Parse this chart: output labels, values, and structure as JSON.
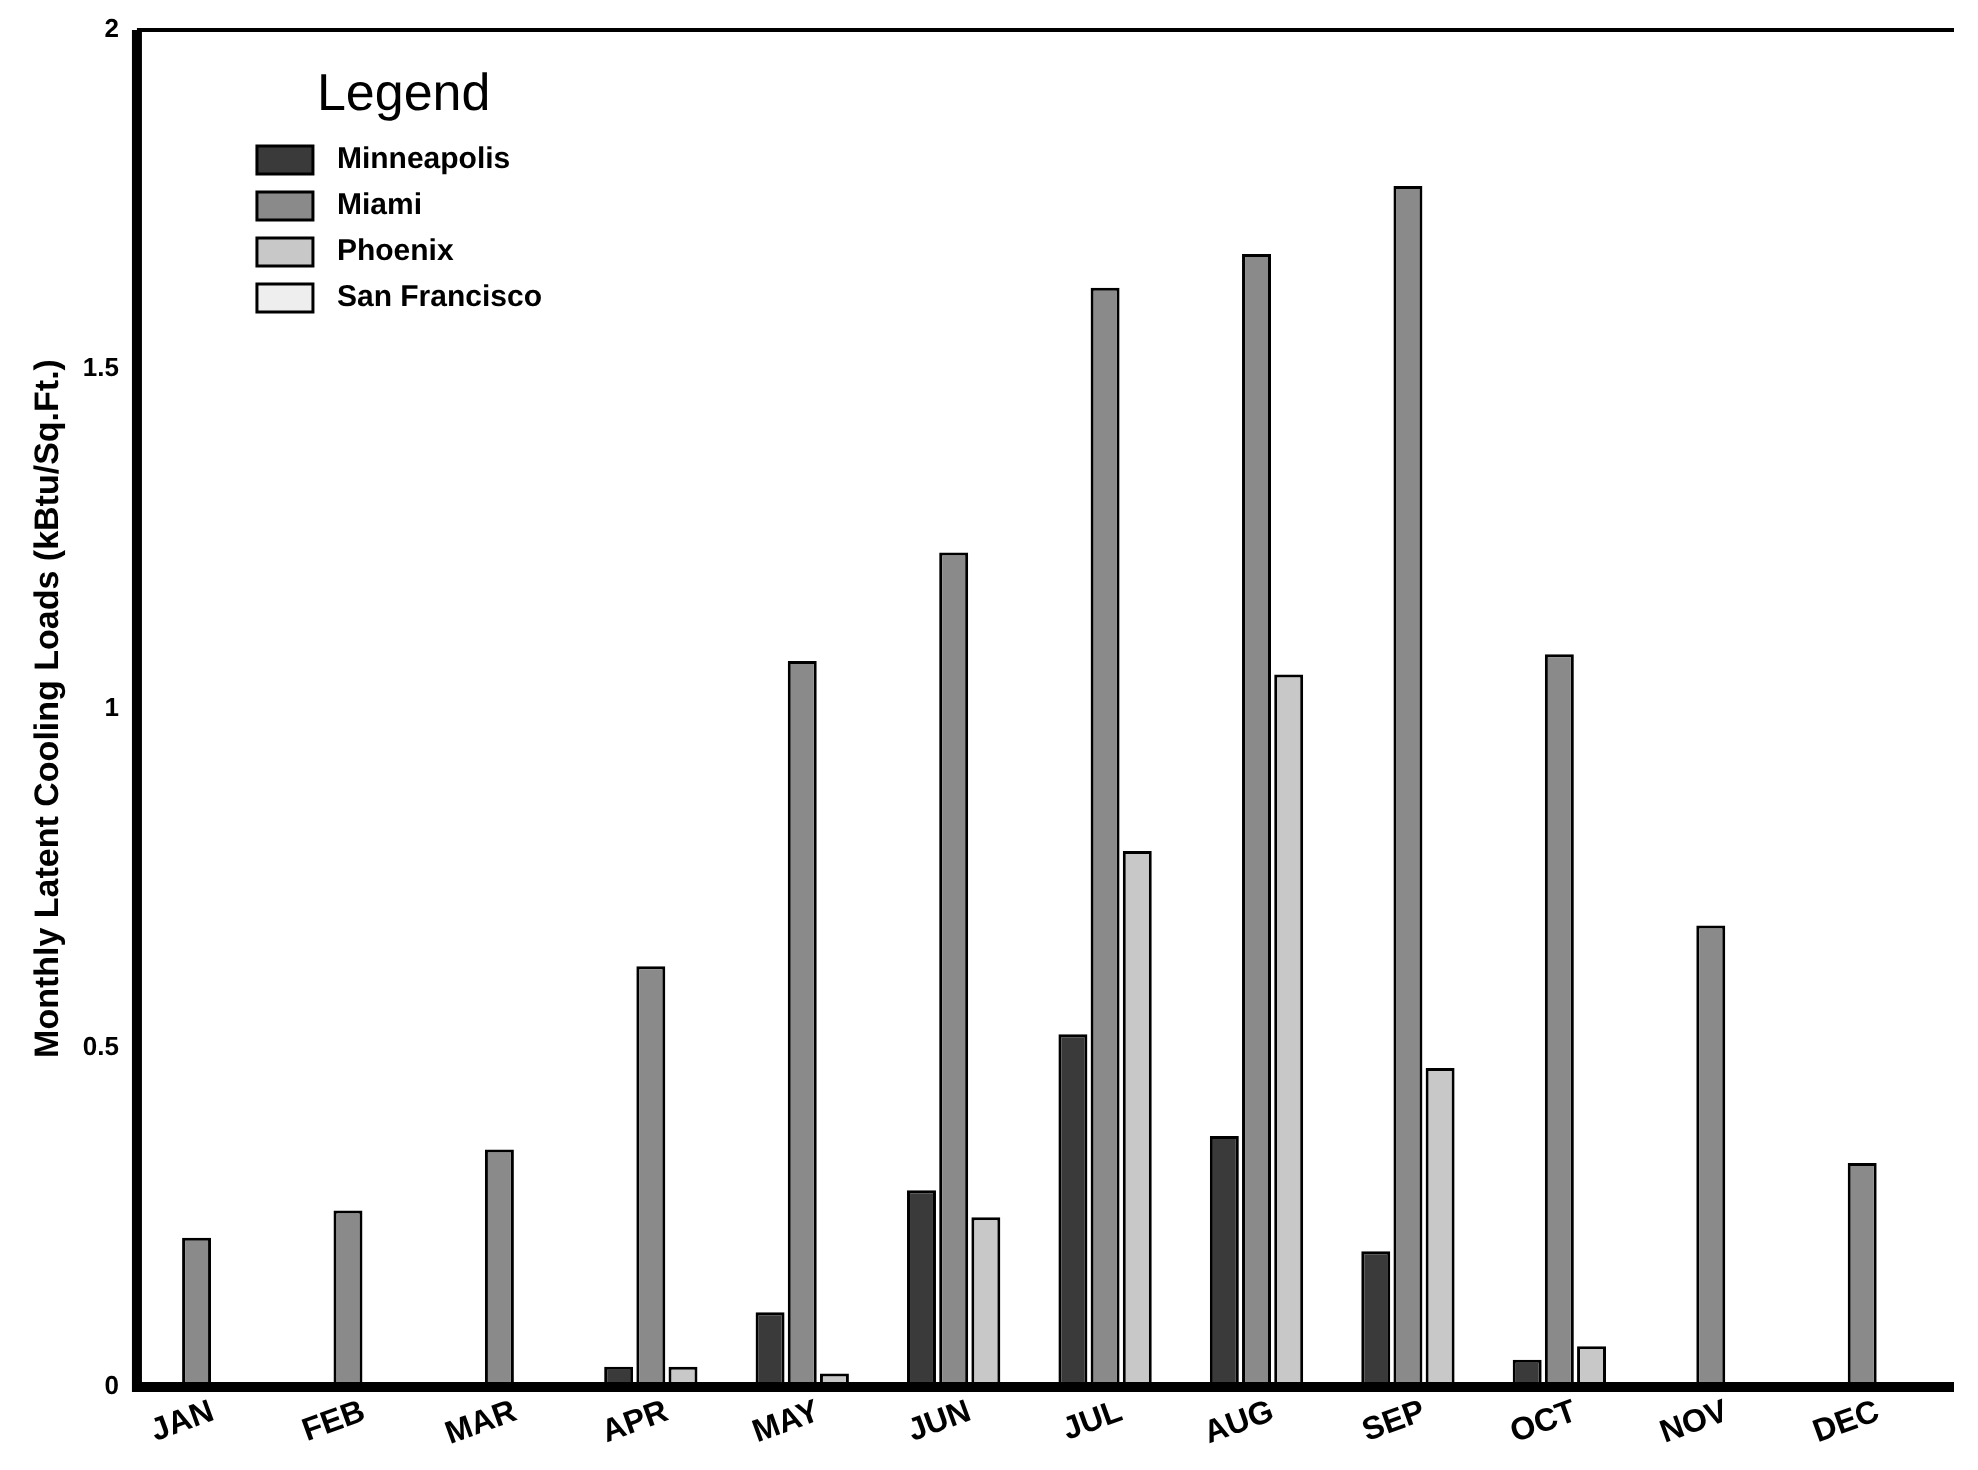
{
  "chart_data": {
    "type": "bar",
    "ylabel": "Monthly Latent Cooling Loads (kBtu/Sq.Ft.)",
    "legend_title": "Legend",
    "legend": "top left",
    "grid": false,
    "categories": [
      "JAN",
      "FEB",
      "MAR",
      "APR",
      "MAY",
      "JUN",
      "JUL",
      "AUG",
      "SEP",
      "OCT",
      "NOV",
      "DEC"
    ],
    "series": [
      {
        "name": "Minneapolis",
        "color": "#3a3a3a",
        "values": [
          0,
          0,
          0,
          0.03,
          0.11,
          0.29,
          0.52,
          0.37,
          0.2,
          0.04,
          0,
          0
        ]
      },
      {
        "name": "Miami",
        "color": "#8a8a8a",
        "values": [
          0.22,
          0.26,
          0.35,
          0.62,
          1.07,
          1.23,
          1.62,
          1.67,
          1.77,
          1.08,
          0.68,
          0.33
        ]
      },
      {
        "name": "Phoenix",
        "color": "#c8c8c8",
        "values": [
          0,
          0,
          0,
          0.03,
          0.02,
          0.25,
          0.79,
          1.05,
          0.47,
          0.06,
          0,
          0
        ]
      },
      {
        "name": "San Francisco",
        "color": "#eeeeee",
        "values": [
          0,
          0,
          0,
          0,
          0,
          0,
          0,
          0,
          0,
          0,
          0,
          0
        ]
      }
    ],
    "ylim": [
      0,
      2
    ],
    "yticks": [
      0,
      0.5,
      1,
      1.5,
      2
    ]
  }
}
